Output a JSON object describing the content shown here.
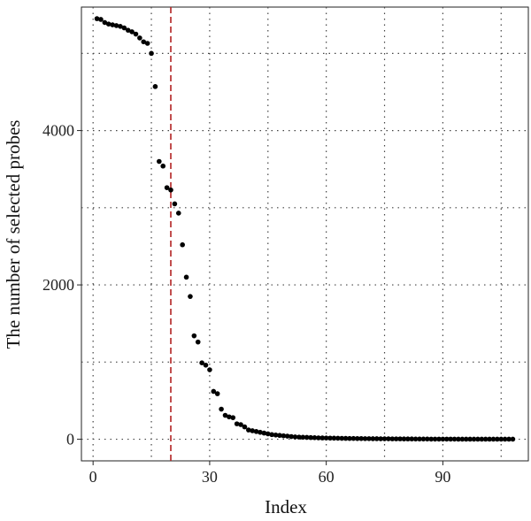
{
  "chart_data": {
    "type": "scatter",
    "title": "",
    "xlabel": "Index",
    "ylabel": "The number of selected probes",
    "xlim": [
      -3,
      112
    ],
    "ylim": [
      -280,
      5600
    ],
    "xticks": [
      0,
      30,
      60,
      90
    ],
    "xtick_labels": [
      "0",
      "30",
      "60",
      "90"
    ],
    "yticks": [
      0,
      2000,
      4000
    ],
    "ytick_labels": [
      "0",
      "2000",
      "4000"
    ],
    "grid": true,
    "grid_style": "dotted",
    "point_color": "#000000",
    "reference_line": {
      "x": 20,
      "color": "#b22222",
      "style": "dashed"
    },
    "x": [
      1,
      2,
      3,
      4,
      5,
      6,
      7,
      8,
      9,
      10,
      11,
      12,
      13,
      14,
      15,
      16,
      17,
      18,
      19,
      20,
      21,
      22,
      23,
      24,
      25,
      26,
      27,
      28,
      29,
      30,
      31,
      32,
      33,
      34,
      35,
      36,
      37,
      38,
      39,
      40,
      41,
      42,
      43,
      44,
      45,
      46,
      47,
      48,
      49,
      50,
      51,
      52,
      53,
      54,
      55,
      56,
      57,
      58,
      59,
      60,
      61,
      62,
      63,
      64,
      65,
      66,
      67,
      68,
      69,
      70,
      71,
      72,
      73,
      74,
      75,
      76,
      77,
      78,
      79,
      80,
      81,
      82,
      83,
      84,
      85,
      86,
      87,
      88,
      89,
      90,
      91,
      92,
      93,
      94,
      95,
      96,
      97,
      98,
      99,
      100,
      101,
      102,
      103,
      104,
      105,
      106,
      107,
      108
    ],
    "y": [
      5450,
      5440,
      5400,
      5380,
      5370,
      5360,
      5350,
      5330,
      5300,
      5280,
      5250,
      5200,
      5150,
      5130,
      5000,
      4570,
      3600,
      3540,
      3260,
      3230,
      3050,
      2930,
      2520,
      2100,
      1850,
      1340,
      1260,
      990,
      960,
      900,
      620,
      590,
      390,
      310,
      290,
      280,
      200,
      190,
      160,
      120,
      110,
      100,
      90,
      80,
      70,
      60,
      55,
      50,
      45,
      40,
      35,
      30,
      28,
      26,
      24,
      22,
      20,
      18,
      17,
      16,
      15,
      14,
      13,
      12,
      11,
      10,
      10,
      9,
      9,
      8,
      8,
      7,
      7,
      6,
      6,
      6,
      5,
      5,
      5,
      4,
      4,
      4,
      3,
      3,
      3,
      3,
      2,
      2,
      2,
      2,
      2,
      2,
      2,
      1,
      1,
      1,
      1,
      1,
      1,
      1,
      1,
      1,
      1,
      1,
      1,
      1,
      1,
      1
    ]
  }
}
